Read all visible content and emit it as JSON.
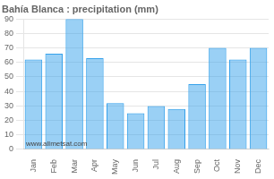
{
  "chart_data": {
    "type": "bar",
    "title": "Bahía Blanca : precipitation (mm)",
    "categories": [
      "Jan",
      "Feb",
      "Mar",
      "Apr",
      "May",
      "Jun",
      "Jul",
      "Aug",
      "Sep",
      "Oct",
      "Nov",
      "Dec"
    ],
    "values": [
      62,
      66,
      90,
      63,
      32,
      25,
      30,
      28,
      45,
      70,
      62,
      70
    ],
    "ylim": [
      0,
      90
    ],
    "yticks": [
      0,
      10,
      20,
      30,
      40,
      50,
      60,
      70,
      80,
      90
    ],
    "grid": true,
    "annotation": "www.allmetsat.com"
  }
}
